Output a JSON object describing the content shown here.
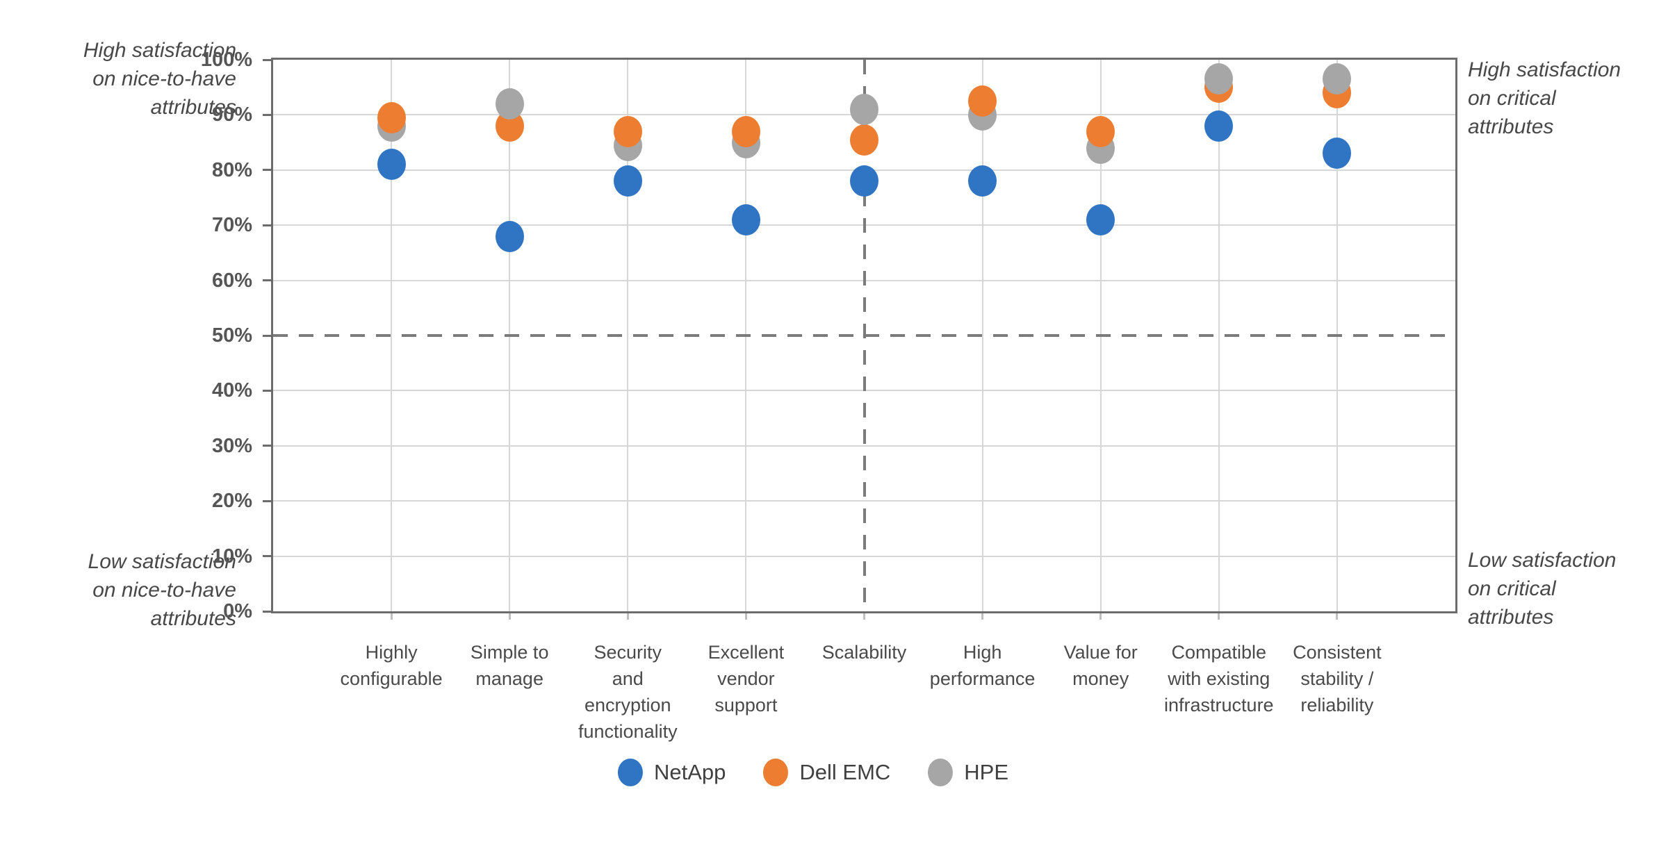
{
  "chart_data": {
    "type": "scatter",
    "title": "",
    "categories": [
      "Highly\nconfigurable",
      "Simple to\nmanage",
      "Security\nand\nencryption\nfunctionality",
      "Excellent\nvendor\nsupport",
      "Scalability",
      "High\nperformance",
      "Value for\nmoney",
      "Compatible\nwith existing\ninfrastructure",
      "Consistent\nstability /\nreliability"
    ],
    "series": [
      {
        "name": "NetApp",
        "color": "#3074C4",
        "values": [
          81,
          68,
          78,
          71,
          78,
          78,
          71,
          88,
          83
        ]
      },
      {
        "name": "Dell EMC",
        "color": "#ED7D31",
        "values": [
          89.5,
          88,
          87,
          87,
          85.5,
          92.5,
          87,
          95,
          94
        ]
      },
      {
        "name": "HPE",
        "color": "#A6A6A6",
        "values": [
          88,
          92,
          84.5,
          85,
          91,
          90,
          84,
          96.5,
          96.5
        ]
      }
    ],
    "y_axis": {
      "min": 0,
      "max": 100,
      "step": 10,
      "tick_labels": [
        "0%",
        "10%",
        "20%",
        "30%",
        "40%",
        "50%",
        "60%",
        "70%",
        "80%",
        "90%",
        "100%"
      ]
    },
    "grid": "on",
    "legend_position": "bottom",
    "reference_lines": {
      "horizontal_value": 50,
      "vertical_category": "Scalability",
      "vertical_category_index": 4
    },
    "annotations": {
      "top_left": "High satisfaction\non nice-to-have\nattributes",
      "bottom_left": "Low satisfaction\non nice-to-have\nattributes",
      "top_right": "High satisfaction\non critical\nattributes",
      "bottom_right": "Low satisfaction\non critical\nattributes"
    },
    "colors": {
      "gridline": "#D7D7D7",
      "plot_border": "#6C6C6C",
      "reference_dash": "#7B7B7B"
    }
  }
}
